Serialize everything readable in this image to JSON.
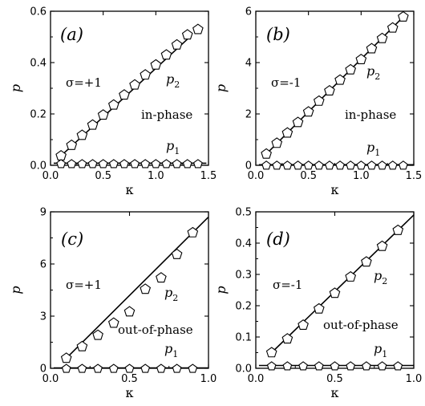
{
  "chart_data": [
    {
      "type": "line",
      "panel_label": "(a)",
      "xlabel": "κ",
      "ylabel": "p",
      "xlim": [
        0,
        1.5
      ],
      "ylim": [
        0,
        0.6
      ],
      "xticks": [
        "0.0",
        "0.5",
        "1.0",
        "1.5"
      ],
      "yticks": [
        "0.0",
        "0.2",
        "0.4",
        "0.6"
      ],
      "sigma_label": "σ=+1",
      "phase_label": "in-phase",
      "series": [
        {
          "name": "p2",
          "label_main": "p",
          "label_sub": "2",
          "x": [
            0.1,
            0.2,
            0.3,
            0.4,
            0.5,
            0.6,
            0.7,
            0.8,
            0.9,
            1.0,
            1.1,
            1.2,
            1.3,
            1.4
          ],
          "y": [
            0.037,
            0.078,
            0.117,
            0.157,
            0.196,
            0.235,
            0.274,
            0.313,
            0.352,
            0.391,
            0.43,
            0.469,
            0.508,
            0.529
          ]
        },
        {
          "name": "p1",
          "label_main": "p",
          "label_sub": "1",
          "x": [
            0.1,
            0.2,
            0.3,
            0.4,
            0.5,
            0.6,
            0.7,
            0.8,
            0.9,
            1.0,
            1.1,
            1.2,
            1.3,
            1.4
          ],
          "y": [
            0.008,
            0.008,
            0.008,
            0.008,
            0.008,
            0.008,
            0.008,
            0.008,
            0.008,
            0.008,
            0.008,
            0.008,
            0.008,
            0.008
          ]
        }
      ]
    },
    {
      "type": "line",
      "panel_label": "(b)",
      "xlabel": "κ",
      "ylabel": "p",
      "xlim": [
        0,
        1.5
      ],
      "ylim": [
        0,
        6
      ],
      "xticks": [
        "0.0",
        "0.5",
        "1.0",
        "1.5"
      ],
      "yticks": [
        "0",
        "2",
        "4",
        "6"
      ],
      "sigma_label": "σ=-1",
      "phase_label": "in-phase",
      "series": [
        {
          "name": "p2",
          "label_main": "p",
          "label_sub": "2",
          "x": [
            0.1,
            0.2,
            0.3,
            0.4,
            0.5,
            0.6,
            0.7,
            0.8,
            0.9,
            1.0,
            1.1,
            1.2,
            1.3,
            1.4
          ],
          "y": [
            0.44,
            0.86,
            1.26,
            1.67,
            2.08,
            2.5,
            2.9,
            3.32,
            3.72,
            4.12,
            4.54,
            4.94,
            5.35,
            5.78
          ]
        },
        {
          "name": "p1",
          "label_main": "p",
          "label_sub": "1",
          "x": [
            0.1,
            0.2,
            0.3,
            0.4,
            0.5,
            0.6,
            0.7,
            0.8,
            0.9,
            1.0,
            1.1,
            1.2,
            1.3,
            1.4
          ],
          "y": [
            0.02,
            0.02,
            0.02,
            0.02,
            0.02,
            0.02,
            0.02,
            0.02,
            0.02,
            0.02,
            0.02,
            0.02,
            0.02,
            0.02
          ]
        }
      ]
    },
    {
      "type": "line",
      "panel_label": "(c)",
      "xlabel": "κ",
      "ylabel": "p",
      "xlim": [
        0,
        1.0
      ],
      "ylim": [
        0,
        9
      ],
      "xticks": [
        "0.0",
        "0.5",
        "1.0"
      ],
      "yticks": [
        "0",
        "3",
        "6",
        "9"
      ],
      "sigma_label": "σ=+1",
      "phase_label": "out-of-phase",
      "series": [
        {
          "name": "p2",
          "label_main": "p",
          "label_sub": "2",
          "x": [
            0.1,
            0.2,
            0.3,
            0.4,
            0.5,
            0.6,
            0.7,
            0.8,
            0.9
          ],
          "y": [
            0.58,
            1.25,
            1.9,
            2.6,
            3.25,
            4.55,
            5.2,
            6.55,
            7.8
          ]
        },
        {
          "name": "p1",
          "label_main": "p",
          "label_sub": "1",
          "x": [
            0.1,
            0.2,
            0.3,
            0.4,
            0.5,
            0.6,
            0.7,
            0.8,
            0.9
          ],
          "y": [
            0.02,
            0.02,
            0.02,
            0.02,
            0.02,
            0.02,
            0.02,
            0.02,
            0.02
          ]
        }
      ]
    },
    {
      "type": "line",
      "panel_label": "(d)",
      "xlabel": "κ",
      "ylabel": "p",
      "xlim": [
        0,
        1.0
      ],
      "ylim": [
        0,
        0.5
      ],
      "xticks": [
        "0.0",
        "0.5",
        "1.0"
      ],
      "yticks": [
        "0.0",
        "0.1",
        "0.2",
        "0.3",
        "0.4",
        "0.5"
      ],
      "sigma_label": "σ=-1",
      "phase_label": "out-of-phase",
      "series": [
        {
          "name": "p2",
          "label_main": "p",
          "label_sub": "2",
          "x": [
            0.1,
            0.2,
            0.3,
            0.4,
            0.5,
            0.6,
            0.7,
            0.8,
            0.9
          ],
          "y": [
            0.05,
            0.094,
            0.138,
            0.19,
            0.24,
            0.292,
            0.34,
            0.39,
            0.441
          ]
        },
        {
          "name": "p1",
          "label_main": "p",
          "label_sub": "1",
          "x": [
            0.1,
            0.2,
            0.3,
            0.4,
            0.5,
            0.6,
            0.7,
            0.8,
            0.9
          ],
          "y": [
            0.009,
            0.009,
            0.009,
            0.009,
            0.009,
            0.009,
            0.009,
            0.009,
            0.009
          ]
        }
      ]
    }
  ]
}
